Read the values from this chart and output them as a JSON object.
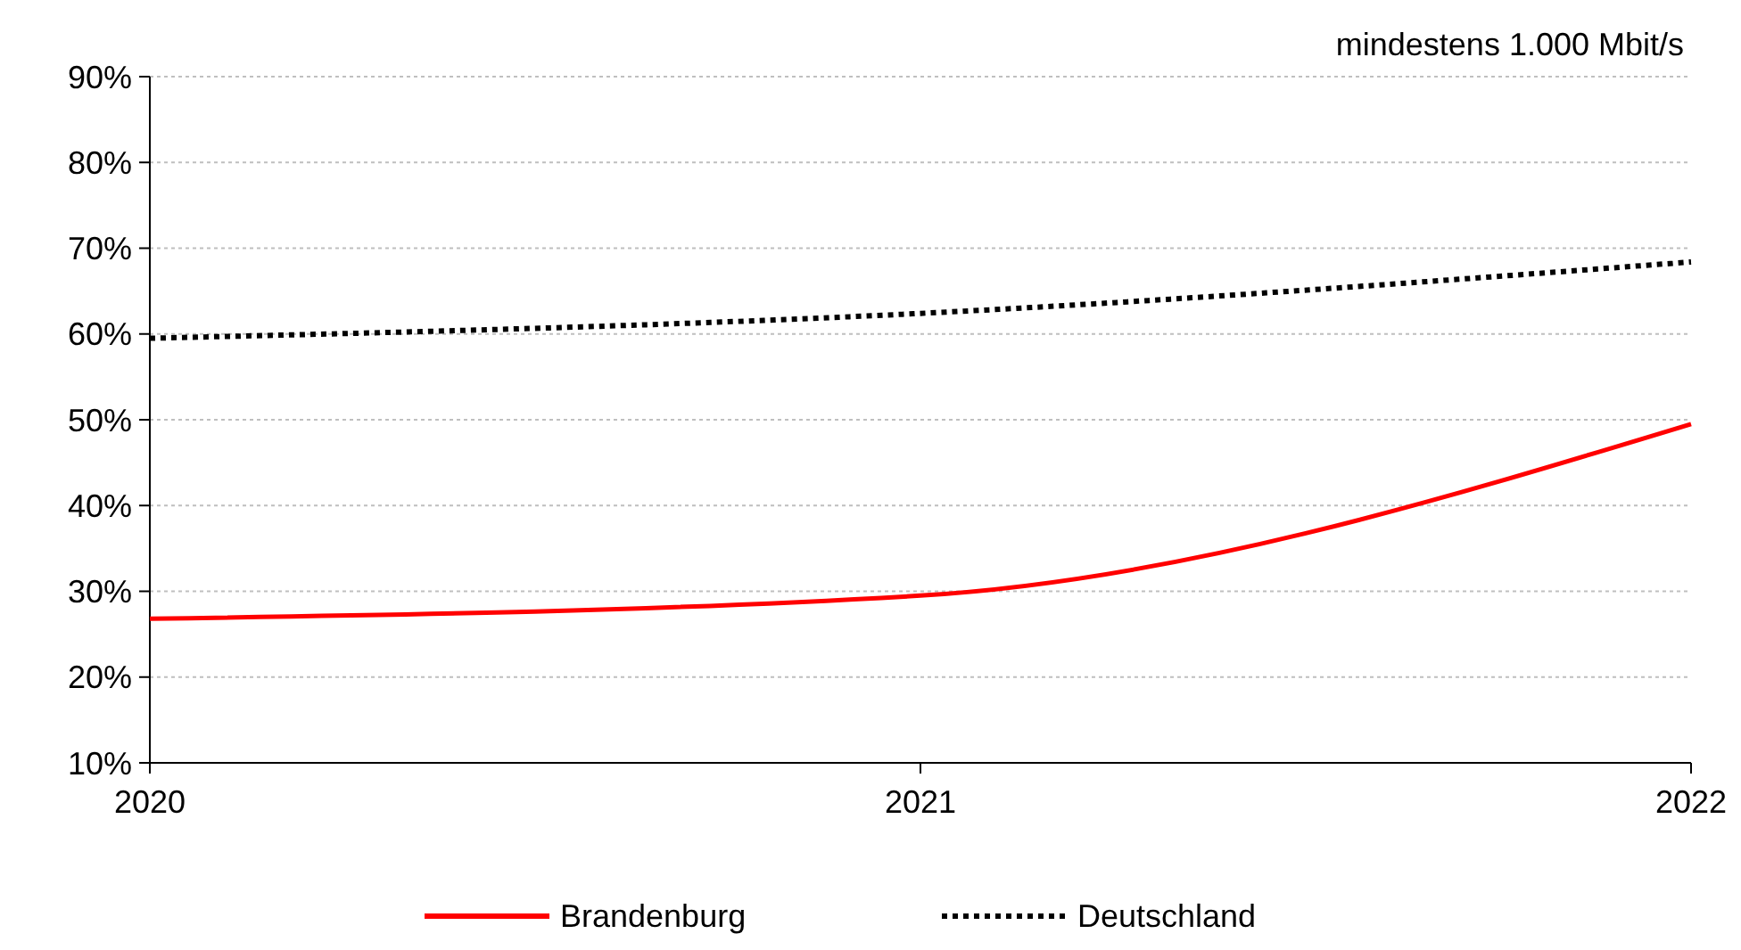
{
  "chart_data": {
    "type": "line",
    "annotations": [
      "mindestens 1.000 Mbit/s"
    ],
    "categories": [
      "2020",
      "2021",
      "2022"
    ],
    "series": [
      {
        "name": "Brandenburg",
        "color": "#ff0000",
        "line_style": "solid",
        "values": [
          26.8,
          29.5,
          49.5
        ]
      },
      {
        "name": "Deutschland",
        "color": "#000000",
        "line_style": "dotted",
        "values": [
          59.5,
          62.4,
          68.4
        ]
      }
    ],
    "ylim": [
      10,
      90
    ],
    "yticks": [
      {
        "value": 10,
        "label": "10%"
      },
      {
        "value": 20,
        "label": "20%"
      },
      {
        "value": 30,
        "label": "30%"
      },
      {
        "value": 40,
        "label": "40%"
      },
      {
        "value": 50,
        "label": "50%"
      },
      {
        "value": 60,
        "label": "60%"
      },
      {
        "value": 70,
        "label": "70%"
      },
      {
        "value": 80,
        "label": "80%"
      },
      {
        "value": 90,
        "label": "90%"
      }
    ],
    "grid": "y",
    "legend": "bottom",
    "marker": "none"
  }
}
